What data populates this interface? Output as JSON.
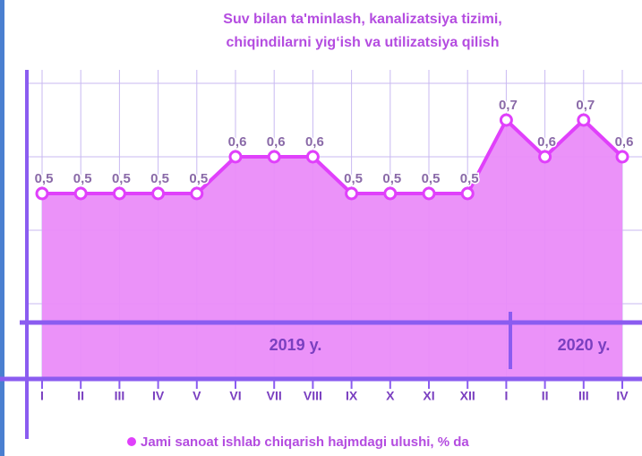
{
  "chart_data": {
    "type": "area",
    "title": "Suv bilan ta'minlash, kanalizatsiya tizimi,",
    "subtitle": "chiqindilarni yig‘ish va utilizatsiya qilish",
    "categories": [
      "I",
      "II",
      "III",
      "IV",
      "V",
      "VI",
      "VII",
      "VIII",
      "IX",
      "X",
      "XI",
      "XII",
      "I",
      "II",
      "III",
      "IV"
    ],
    "series": [
      {
        "name": "Jami sanoat ishlab chiqarish hajmdagi ulushi, % da",
        "color": "#e040fb",
        "values": [
          0.5,
          0.5,
          0.5,
          0.5,
          0.5,
          0.6,
          0.6,
          0.6,
          0.5,
          0.5,
          0.5,
          0.5,
          0.7,
          0.6,
          0.7,
          0.6
        ],
        "value_labels": [
          "0,5",
          "0,5",
          "0,5",
          "0,5",
          "0,5",
          "0,6",
          "0,6",
          "0,6",
          "0,5",
          "0,5",
          "0,5",
          "0,5",
          "0,7",
          "0,6",
          "0,7",
          "0,6"
        ]
      }
    ],
    "annotations": [
      "2019 y.",
      "2020 y."
    ],
    "ylim": [
      0,
      0.8
    ],
    "yticks": [
      0,
      0.2,
      0.4,
      0.6,
      0.8
    ],
    "grid": true
  }
}
